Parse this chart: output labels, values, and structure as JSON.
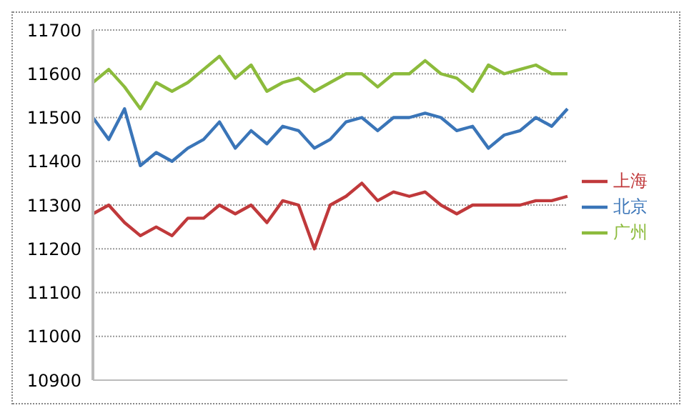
{
  "chart_data": {
    "type": "line",
    "categories": [
      null,
      null,
      null,
      null,
      null,
      null,
      null,
      null,
      null,
      null,
      null,
      null,
      null,
      null,
      null,
      null,
      null,
      null,
      null,
      null,
      null,
      null,
      null,
      null,
      null,
      null,
      null,
      null,
      null,
      null,
      null
    ],
    "series": [
      {
        "name": "北京",
        "color": "#3a75b8",
        "values": [
          11500,
          11450,
          11520,
          11390,
          11420,
          11400,
          11430,
          11450,
          11490,
          11430,
          11470,
          11440,
          11480,
          11470,
          11430,
          11450,
          11490,
          11500,
          11470,
          11500,
          11500,
          11510,
          11500,
          11470,
          11480,
          11430,
          11460,
          11470,
          11500,
          11480,
          11520
        ]
      },
      {
        "name": "上海",
        "color": "#c0393b",
        "values": [
          11280,
          11300,
          11260,
          11230,
          11250,
          11230,
          11270,
          11270,
          11300,
          11280,
          11300,
          11260,
          11310,
          11300,
          11200,
          11300,
          11320,
          11350,
          11310,
          11330,
          11320,
          11330,
          11300,
          11280,
          11300,
          11300,
          11300,
          11300,
          11310,
          11310,
          11320
        ]
      },
      {
        "name": "广州",
        "color": "#8cbb3c",
        "values": [
          11580,
          11610,
          11570,
          11520,
          11580,
          11560,
          11580,
          11610,
          11640,
          11590,
          11620,
          11560,
          11580,
          11590,
          11560,
          11580,
          11600,
          11600,
          11570,
          11600,
          11600,
          11630,
          11600,
          11590,
          11560,
          11620,
          11600,
          11610,
          11620,
          11600,
          11600
        ]
      }
    ],
    "ylim": [
      10900,
      11700
    ],
    "yticks": [
      10900,
      11000,
      11100,
      11200,
      11300,
      11400,
      11500,
      11600,
      11700
    ],
    "grid": "y",
    "legend": "right",
    "marker": "none",
    "line_style": "solid"
  }
}
